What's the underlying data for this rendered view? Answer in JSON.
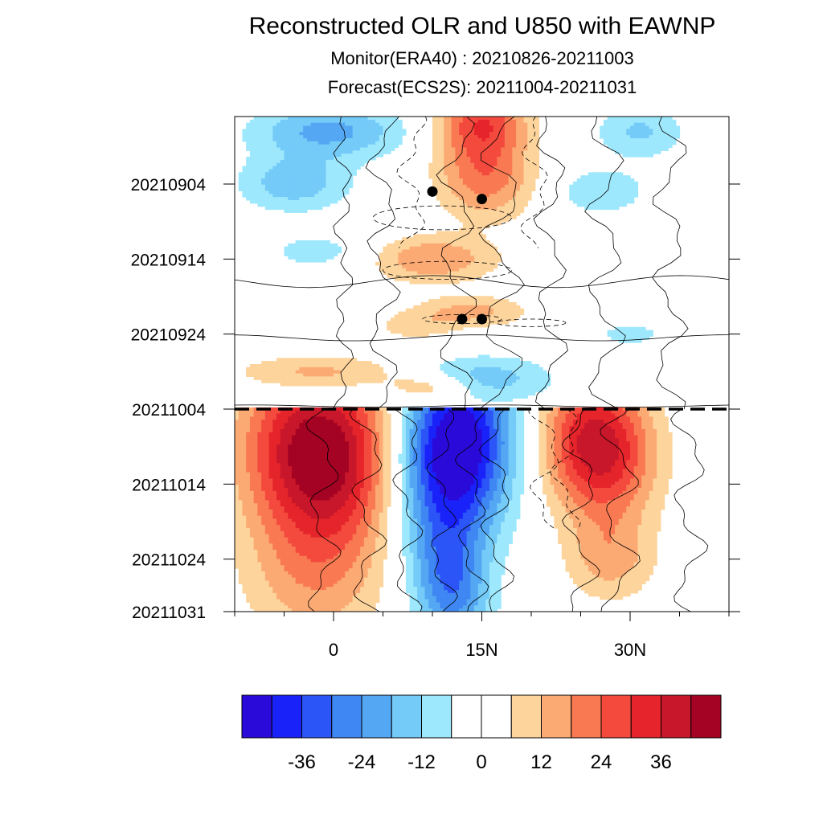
{
  "title": "Reconstructed OLR and U850 with EAWNP",
  "subtitle_monitor": "Monitor(ERA40)  :  20210826-20211003",
  "subtitle_forecast": "Forecast(ECS2S):  20211004-20211031",
  "chart_data": {
    "type": "heatmap",
    "title": "Reconstructed OLR and U850 with EAWNP",
    "x_tick_labels": [
      "0",
      "15N",
      "30N"
    ],
    "x_tick_values": [
      0,
      15,
      30
    ],
    "xlim": [
      -10,
      40
    ],
    "y_tick_labels": [
      "20210904",
      "20210914",
      "20210924",
      "20211004",
      "20211014",
      "20211024",
      "20211031"
    ],
    "y_range": [
      "20210826",
      "20211031"
    ],
    "forecast_start": "20211004",
    "colorbar": {
      "levels": [
        -42,
        -36,
        -30,
        -24,
        -18,
        -12,
        -6,
        0,
        6,
        12,
        18,
        24,
        30,
        36,
        42
      ],
      "labels": [
        "-36",
        "-24",
        "-12",
        "0",
        "12",
        "24",
        "36"
      ],
      "colors": [
        "#2a0ad8",
        "#1a22fa",
        "#2c55f8",
        "#3f87f2",
        "#54a7f3",
        "#74cbf8",
        "#9ee8fd",
        "#ffffff",
        "#ffffff",
        "#fdd49c",
        "#fcaa74",
        "#f97a52",
        "#f44a3e",
        "#e5242b",
        "#c8172a",
        "#a40323"
      ]
    },
    "markers": [
      {
        "lat": 10,
        "date": "20210905"
      },
      {
        "lat": 15,
        "date": "20210906"
      },
      {
        "lat": 13,
        "date": "20210922"
      },
      {
        "lat": 15,
        "date": "20210922"
      }
    ],
    "olr_features": [
      {
        "lat_range": [
          -8,
          7
        ],
        "dates": [
          "20211004",
          "20211031"
        ],
        "value": 42
      },
      {
        "lat_range": [
          6,
          18
        ],
        "dates": [
          "20211004",
          "20211031"
        ],
        "value": -42
      },
      {
        "lat_range": [
          21,
          33
        ],
        "dates": [
          "20211004",
          "20211020"
        ],
        "value": 36
      },
      {
        "lat_range": [
          13,
          20
        ],
        "dates": [
          "20210826",
          "20210915"
        ],
        "value": 24
      },
      {
        "lat_range": [
          -8,
          10
        ],
        "dates": [
          "20210826",
          "20210908"
        ],
        "value": -18
      },
      {
        "lat_range": [
          9,
          21
        ],
        "dates": [
          "20210925",
          "20211003"
        ],
        "value": -12
      }
    ]
  }
}
